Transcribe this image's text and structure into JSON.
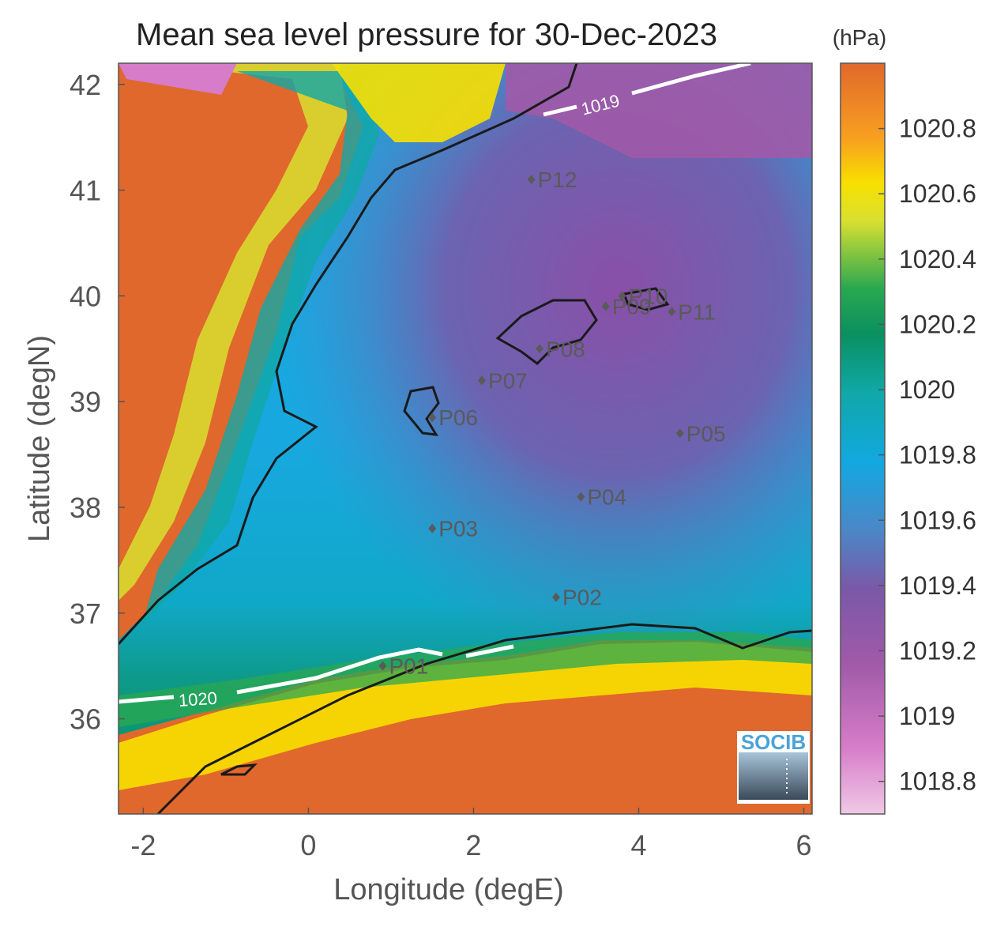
{
  "title": "Mean sea level pressure for 30-Dec-2023",
  "xlabel": "Longitude (degE)",
  "ylabel": "Latitude (degN)",
  "colorbar_unit": "(hPa)",
  "logo_text": "SOCIB",
  "chart_data": {
    "type": "heatmap",
    "title": "Mean sea level pressure for 30-Dec-2023",
    "xlabel": "Longitude (degE)",
    "ylabel": "Latitude (degN)",
    "xlim": [
      -2.3,
      6.1
    ],
    "ylim": [
      35.1,
      42.2
    ],
    "xticks": [
      -2,
      0,
      2,
      4,
      6
    ],
    "yticks": [
      36,
      37,
      38,
      39,
      40,
      41,
      42
    ],
    "colorbar": {
      "unit": "(hPa)",
      "range": [
        1018.7,
        1021.0
      ],
      "ticks": [
        "1018.8",
        "1019",
        "1019.2",
        "1019.4",
        "1019.6",
        "1019.8",
        "1020",
        "1020.2",
        "1020.4",
        "1020.6",
        "1020.8"
      ]
    },
    "contours": [
      {
        "label": "1019",
        "value": 1019
      },
      {
        "label": "1020",
        "value": 1020
      }
    ],
    "stations": [
      {
        "name": "P01",
        "lon": 0.9,
        "lat": 36.5
      },
      {
        "name": "P02",
        "lon": 3.0,
        "lat": 37.15
      },
      {
        "name": "P03",
        "lon": 1.5,
        "lat": 37.8
      },
      {
        "name": "P04",
        "lon": 3.3,
        "lat": 38.1
      },
      {
        "name": "P05",
        "lon": 4.5,
        "lat": 38.7
      },
      {
        "name": "P06",
        "lon": 1.5,
        "lat": 38.85
      },
      {
        "name": "P07",
        "lon": 2.1,
        "lat": 39.2
      },
      {
        "name": "P08",
        "lon": 2.8,
        "lat": 39.5
      },
      {
        "name": "P09",
        "lon": 3.6,
        "lat": 39.9
      },
      {
        "name": "P10",
        "lon": 3.8,
        "lat": 40.0
      },
      {
        "name": "P11",
        "lon": 4.4,
        "lat": 39.85
      },
      {
        "name": "P12",
        "lon": 2.7,
        "lat": 41.1
      }
    ]
  }
}
